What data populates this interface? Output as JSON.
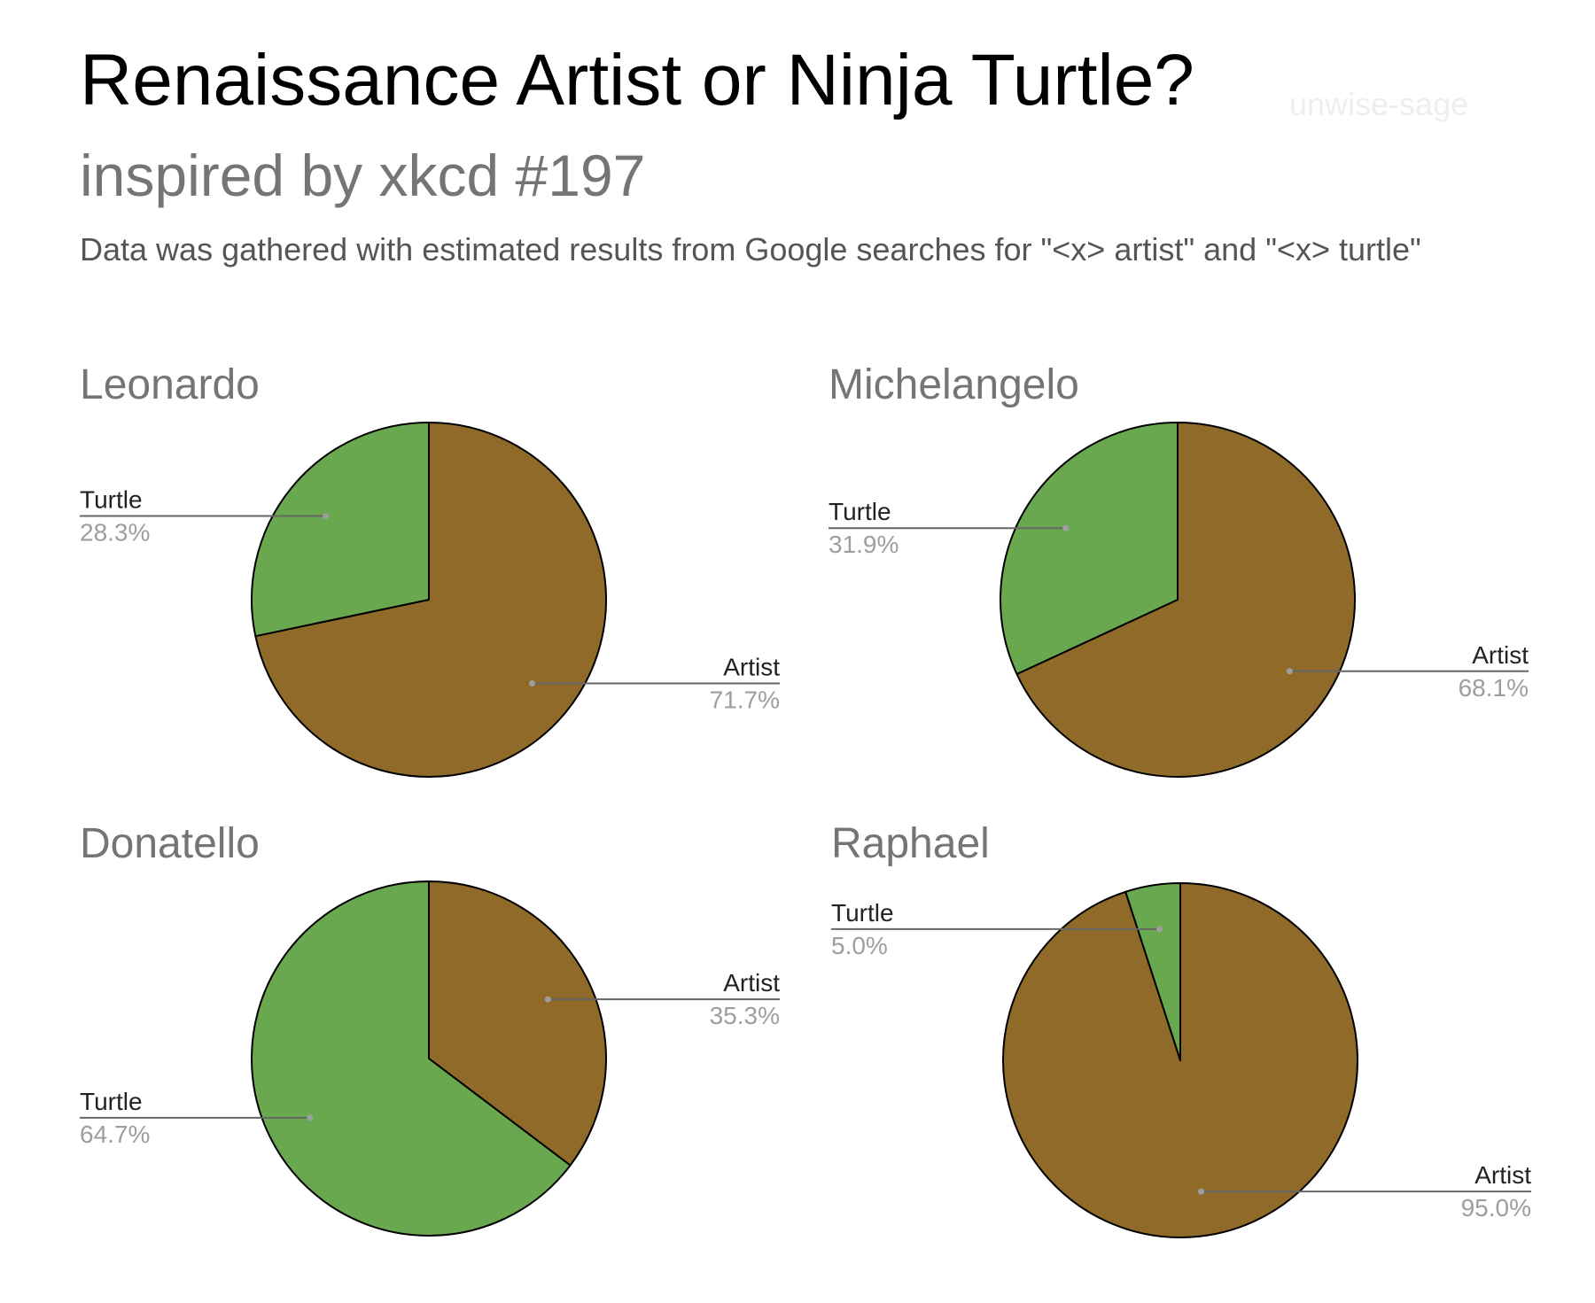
{
  "header": {
    "title": "Renaissance Artist or Ninja Turtle?",
    "subtitle": "inspired by xkcd #197",
    "note": "Data was gathered with estimated results from Google searches for \"<x> artist\" and \"<x> turtle\"",
    "watermark": "unwise-sage"
  },
  "colors": {
    "artist": "#8f6a29",
    "turtle": "#6aa84f",
    "outline": "#000000",
    "leader": "#666666"
  },
  "chart_data": [
    {
      "type": "pie",
      "title": "Leonardo",
      "slices": [
        {
          "label": "Artist",
          "value": 71.7,
          "pct": "71.7%"
        },
        {
          "label": "Turtle",
          "value": 28.3,
          "pct": "28.3%"
        }
      ]
    },
    {
      "type": "pie",
      "title": "Michelangelo",
      "slices": [
        {
          "label": "Artist",
          "value": 68.1,
          "pct": "68.1%"
        },
        {
          "label": "Turtle",
          "value": 31.9,
          "pct": "31.9%"
        }
      ]
    },
    {
      "type": "pie",
      "title": "Donatello",
      "slices": [
        {
          "label": "Artist",
          "value": 35.3,
          "pct": "35.3%"
        },
        {
          "label": "Turtle",
          "value": 64.7,
          "pct": "64.7%"
        }
      ]
    },
    {
      "type": "pie",
      "title": "Raphael",
      "slices": [
        {
          "label": "Artist",
          "value": 95.0,
          "pct": "95.0%"
        },
        {
          "label": "Turtle",
          "value": 5.0,
          "pct": "5.0%"
        }
      ]
    }
  ]
}
